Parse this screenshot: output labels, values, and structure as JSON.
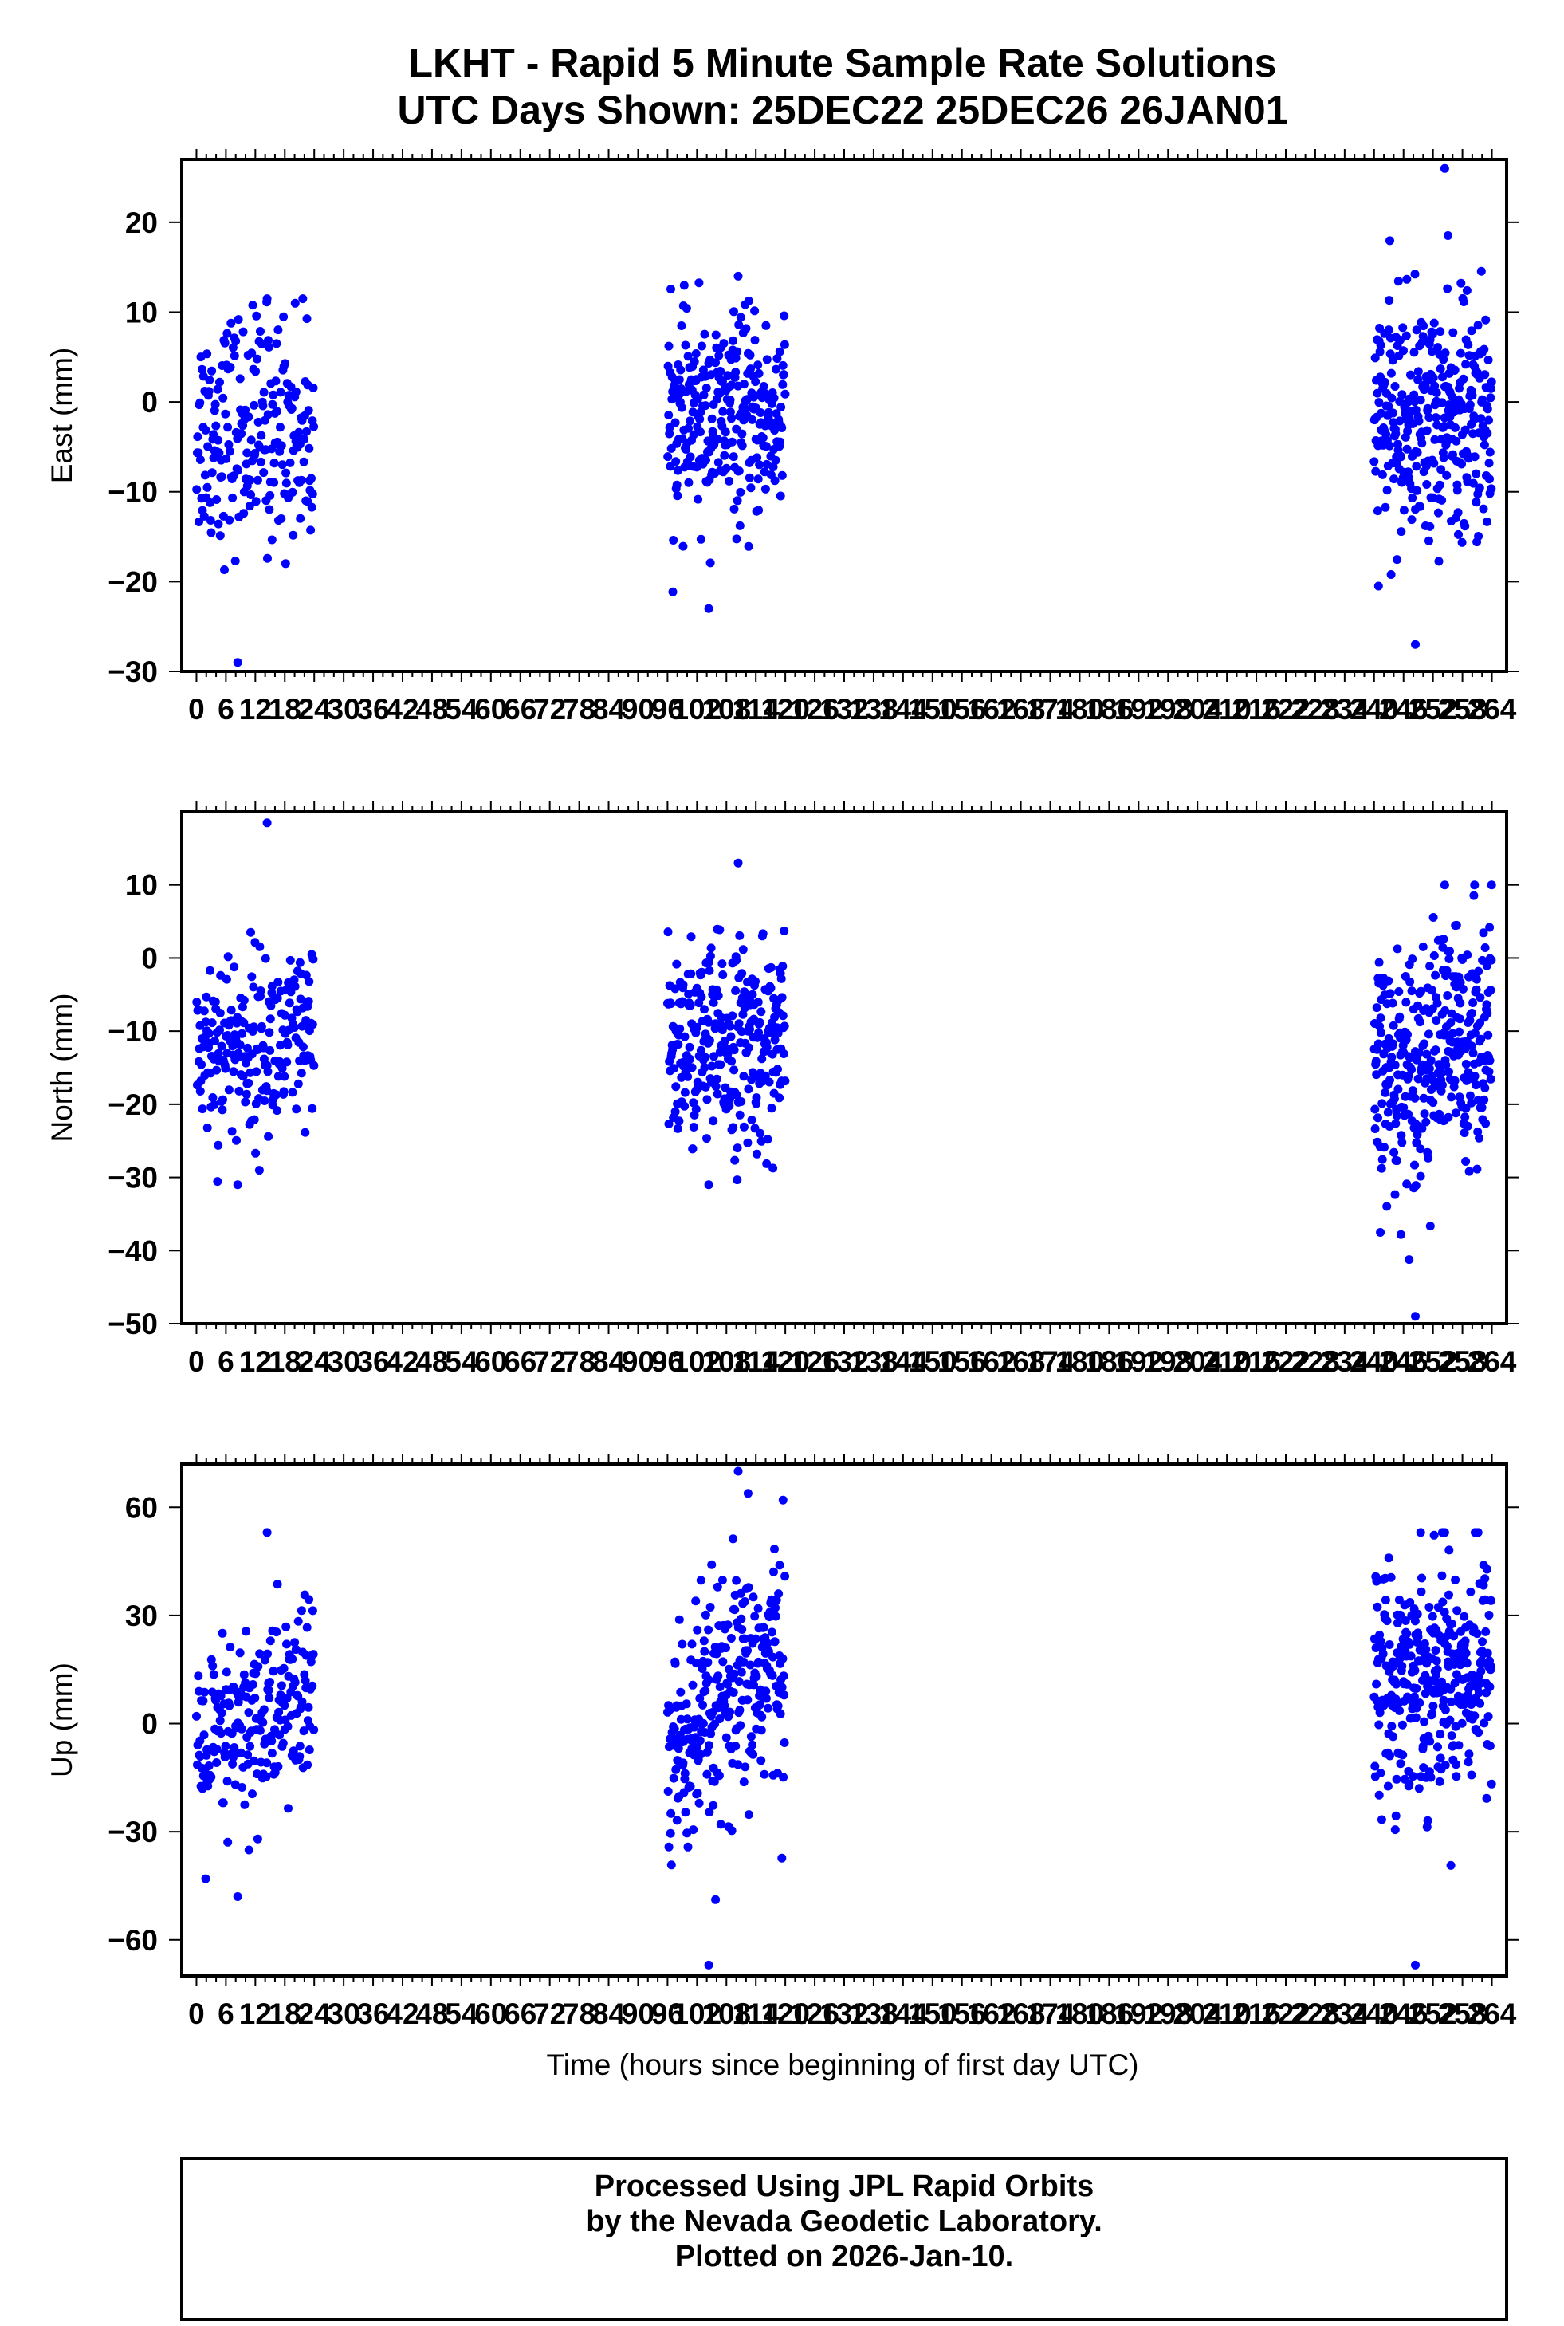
{
  "title": {
    "line1": "LKHT - Rapid 5 Minute Sample Rate Solutions",
    "line2": "UTC Days Shown:  25DEC22 25DEC26 26JAN01"
  },
  "xlabel": "Time (hours since beginning of first day UTC)",
  "footer": {
    "line1": "Processed Using JPL Rapid Orbits",
    "line2": "by the Nevada Geodetic Laboratory.",
    "line3": "Plotted on 2026-Jan-10."
  },
  "colors": {
    "points": "#0000ff",
    "frame": "#000000"
  },
  "chart_data": [
    {
      "type": "scatter",
      "ylabel": "East (mm)",
      "xlim": [
        -3,
        267
      ],
      "ylim": [
        -30,
        27
      ],
      "yticks": [
        -30,
        -20,
        -10,
        0,
        10,
        20
      ],
      "xticks": [
        0,
        6,
        12,
        18,
        24,
        30,
        36,
        42,
        48,
        54,
        60,
        66,
        72,
        78,
        84,
        90,
        96,
        102,
        108,
        114,
        120,
        126,
        132,
        138,
        144,
        150,
        156,
        162,
        168,
        174,
        180,
        186,
        192,
        198,
        204,
        210,
        216,
        222,
        228,
        234,
        240,
        246,
        252,
        258,
        264
      ],
      "segments": [
        {
          "day": "25DEC22",
          "t_start": 0,
          "t_end": 24,
          "mean": -3,
          "sd": 6.5,
          "trend": 0,
          "n": 220,
          "min": -29,
          "max": 11.5
        },
        {
          "day": "25DEC26",
          "t_start": 96,
          "t_end": 120,
          "mean": -2,
          "sd": 5.5,
          "trend": 0,
          "n": 290,
          "min": -23,
          "max": 14
        },
        {
          "day": "26JAN01",
          "t_start": 240,
          "t_end": 264,
          "mean": -2,
          "sd": 6.5,
          "trend": 0,
          "n": 330,
          "min": -27,
          "max": 26
        }
      ]
    },
    {
      "type": "scatter",
      "ylabel": "North (mm)",
      "xlim": [
        -3,
        267
      ],
      "ylim": [
        -50,
        20
      ],
      "yticks": [
        -50,
        -40,
        -30,
        -20,
        -10,
        0,
        10
      ],
      "xticks": [
        0,
        6,
        12,
        18,
        24,
        30,
        36,
        42,
        48,
        54,
        60,
        66,
        72,
        78,
        84,
        90,
        96,
        102,
        108,
        114,
        120,
        126,
        132,
        138,
        144,
        150,
        156,
        162,
        168,
        174,
        180,
        186,
        192,
        198,
        204,
        210,
        216,
        222,
        228,
        234,
        240,
        246,
        252,
        258,
        264
      ],
      "segments": [
        {
          "day": "25DEC22",
          "t_start": 0,
          "t_end": 24,
          "mean": -12,
          "sd": 6.5,
          "trend": 0,
          "n": 220,
          "min": -31,
          "max": 18.5
        },
        {
          "day": "25DEC26",
          "t_start": 96,
          "t_end": 120,
          "mean": -12,
          "sd": 7,
          "trend": 0,
          "n": 290,
          "min": -31,
          "max": 13
        },
        {
          "day": "26JAN01",
          "t_start": 240,
          "t_end": 264,
          "mean": -13,
          "sd": 8,
          "trend": 8,
          "n": 330,
          "min": -49,
          "max": 10
        }
      ]
    },
    {
      "type": "scatter",
      "ylabel": "Up (mm)",
      "xlim": [
        -3,
        267
      ],
      "ylim": [
        -70,
        72
      ],
      "yticks": [
        -60,
        -30,
        0,
        30,
        60
      ],
      "xticks": [
        0,
        6,
        12,
        18,
        24,
        30,
        36,
        42,
        48,
        54,
        60,
        66,
        72,
        78,
        84,
        90,
        96,
        102,
        108,
        114,
        120,
        126,
        132,
        138,
        144,
        150,
        156,
        162,
        168,
        174,
        180,
        186,
        192,
        198,
        204,
        210,
        216,
        222,
        228,
        234,
        240,
        246,
        252,
        258,
        264
      ],
      "segments": [
        {
          "day": "25DEC22",
          "t_start": 0,
          "t_end": 24,
          "mean": 0,
          "sd": 14,
          "trend": 20,
          "n": 220,
          "min": -48,
          "max": 53
        },
        {
          "day": "25DEC26",
          "t_start": 96,
          "t_end": 120,
          "mean": 5,
          "sd": 17,
          "trend": 30,
          "n": 290,
          "min": -67,
          "max": 70
        },
        {
          "day": "26JAN01",
          "t_start": 240,
          "t_end": 264,
          "mean": 14,
          "sd": 16,
          "trend": 5,
          "n": 330,
          "min": -67,
          "max": 53
        }
      ]
    }
  ]
}
